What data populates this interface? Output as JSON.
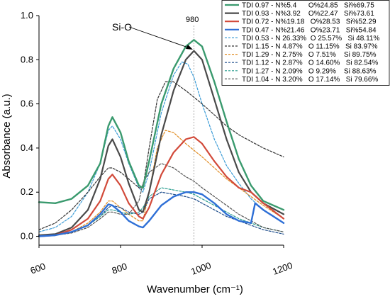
{
  "chart_data": {
    "type": "line",
    "title": "",
    "xlabel": "Wavenumber (cm⁻¹)",
    "ylabel": "Absorbance (a.u.)",
    "xlim": [
      600,
      1200
    ],
    "ylim": [
      -0.04,
      1.0
    ],
    "x_ticks": [
      600,
      800,
      1000,
      1200
    ],
    "x_tick_labels": [
      "600",
      "800",
      "1000",
      "1200"
    ],
    "y_ticks": [
      0.0,
      0.2,
      0.4,
      0.6,
      0.8,
      1.0
    ],
    "y_tick_labels": [
      "0.0",
      "0.2",
      "0.4",
      "0.6",
      "0.8",
      "1.0"
    ],
    "grid": false,
    "legend_position": "top-right",
    "annotations": [
      {
        "text": "Si-O",
        "x": 915,
        "y": 0.94
      },
      {
        "text": "980",
        "x": 980,
        "y": 1.0
      }
    ],
    "reference_line": {
      "x": 980,
      "style": "dotted"
    },
    "series": [
      {
        "name": "TDI 0.97 - N%5.4      O%24.85   Si%69.75",
        "color": "#3a9a6e",
        "style": "solid",
        "width": 2.4,
        "x": [
          600,
          640,
          680,
          720,
          750,
          770,
          780,
          800,
          820,
          845,
          855,
          870,
          900,
          930,
          960,
          980,
          1000,
          1030,
          1060,
          1090,
          1120,
          1150,
          1200
        ],
        "y": [
          0.155,
          0.15,
          0.17,
          0.23,
          0.33,
          0.5,
          0.54,
          0.47,
          0.34,
          0.23,
          0.22,
          0.34,
          0.6,
          0.76,
          0.86,
          0.89,
          0.86,
          0.7,
          0.52,
          0.35,
          0.23,
          0.16,
          0.12
        ]
      },
      {
        "name": "TDI 0.93 - N%3.92    O%22.47   Si%73.61",
        "color": "#4a4a4a",
        "style": "solid",
        "width": 2.2,
        "x": [
          600,
          640,
          680,
          720,
          750,
          770,
          780,
          800,
          820,
          845,
          855,
          870,
          900,
          930,
          960,
          980,
          1000,
          1030,
          1060,
          1090,
          1120,
          1150,
          1200
        ],
        "y": [
          0.005,
          0.01,
          0.04,
          0.12,
          0.26,
          0.41,
          0.44,
          0.36,
          0.24,
          0.12,
          0.11,
          0.2,
          0.46,
          0.66,
          0.8,
          0.84,
          0.8,
          0.62,
          0.44,
          0.29,
          0.2,
          0.15,
          0.1
        ]
      },
      {
        "name": "TDI 0.72 - N%19.18   O%28.53   Si%52.29",
        "color": "#d24a3a",
        "style": "solid",
        "width": 2.2,
        "x": [
          600,
          640,
          680,
          720,
          750,
          770,
          780,
          800,
          820,
          845,
          855,
          870,
          900,
          930,
          960,
          980,
          1000,
          1030,
          1060,
          1090,
          1120,
          1150,
          1200
        ],
        "y": [
          0.0,
          0.005,
          0.03,
          0.08,
          0.16,
          0.26,
          0.28,
          0.23,
          0.15,
          0.09,
          0.08,
          0.13,
          0.28,
          0.38,
          0.44,
          0.45,
          0.42,
          0.34,
          0.27,
          0.22,
          0.2,
          0.15,
          0.08
        ]
      },
      {
        "name": "TDI 0.47 - N%21.46   O%23.71   Si%54.84",
        "color": "#2e6fd6",
        "style": "solid",
        "width": 2.4,
        "x": [
          600,
          640,
          680,
          720,
          750,
          770,
          780,
          800,
          820,
          845,
          855,
          870,
          900,
          930,
          960,
          980,
          1000,
          1030,
          1060,
          1090,
          1120,
          1130,
          1150,
          1200
        ],
        "y": [
          0.0,
          0.005,
          0.02,
          0.05,
          0.1,
          0.145,
          0.14,
          0.11,
          0.07,
          0.045,
          0.04,
          0.07,
          0.14,
          0.18,
          0.2,
          0.2,
          0.19,
          0.15,
          0.1,
          0.07,
          0.06,
          0.15,
          0.12,
          0.06
        ]
      },
      {
        "name": "TDI 0.53 - N 26.33%  O 25.57%   Si 48.11%",
        "color": "#3a9bd6",
        "style": "dashed",
        "width": 1.2,
        "x": [
          600,
          640,
          680,
          720,
          750,
          770,
          780,
          800,
          820,
          845,
          855,
          870,
          900,
          930,
          950,
          965,
          980,
          1000,
          1030,
          1060,
          1090,
          1120,
          1150,
          1200
        ],
        "y": [
          0.02,
          0.04,
          0.09,
          0.2,
          0.33,
          0.48,
          0.5,
          0.44,
          0.33,
          0.22,
          0.2,
          0.29,
          0.56,
          0.73,
          0.79,
          0.78,
          0.72,
          0.6,
          0.44,
          0.32,
          0.24,
          0.17,
          0.12,
          0.06
        ]
      },
      {
        "name": "TDI 1.15 - N 4.87%   O 11.15%   Si 83.97%",
        "color": "#333333",
        "style": "dashed",
        "width": 1.2,
        "x": [
          600,
          640,
          680,
          720,
          750,
          770,
          780,
          800,
          820,
          845,
          855,
          870,
          890,
          910,
          930,
          960,
          1000,
          1030,
          1060,
          1090,
          1120,
          1150,
          1200
        ],
        "y": [
          0.03,
          0.06,
          0.12,
          0.2,
          0.27,
          0.31,
          0.31,
          0.29,
          0.26,
          0.22,
          0.22,
          0.4,
          0.62,
          0.7,
          0.7,
          0.66,
          0.6,
          0.55,
          0.5,
          0.46,
          0.43,
          0.4,
          0.36
        ]
      },
      {
        "name": "TDI 1.29 - N 2.75%   O 7.51%    Si 89.75%",
        "color": "#e08a1e",
        "style": "dashed",
        "width": 1.2,
        "x": [
          600,
          640,
          680,
          720,
          750,
          770,
          780,
          800,
          820,
          845,
          855,
          870,
          890,
          910,
          930,
          960,
          1000,
          1030,
          1060,
          1090,
          1120,
          1150,
          1200
        ],
        "y": [
          0.0,
          0.005,
          0.02,
          0.06,
          0.11,
          0.16,
          0.16,
          0.13,
          0.1,
          0.07,
          0.07,
          0.2,
          0.4,
          0.48,
          0.47,
          0.42,
          0.36,
          0.31,
          0.26,
          0.22,
          0.18,
          0.14,
          0.08
        ]
      },
      {
        "name": "TDI 1.12 - N 2.87%   O 14.60%   Si 82.54%",
        "color": "#1f4e8c",
        "style": "dashed",
        "width": 1.2,
        "x": [
          600,
          640,
          680,
          720,
          750,
          770,
          780,
          800,
          820,
          845,
          855,
          870,
          900,
          930,
          960,
          980,
          1000,
          1030,
          1060,
          1090,
          1120,
          1150,
          1200
        ],
        "y": [
          0.0,
          0.005,
          0.02,
          0.05,
          0.09,
          0.13,
          0.14,
          0.13,
          0.11,
          0.1,
          0.11,
          0.17,
          0.2,
          0.19,
          0.18,
          0.17,
          0.15,
          0.12,
          0.09,
          0.07,
          0.05,
          0.03,
          0.01
        ]
      },
      {
        "name": "TDI 1.27 - N 2.09%   O 9.29%    Si 88.63%",
        "color": "#2a9d8f",
        "style": "dashed",
        "width": 1.2,
        "x": [
          600,
          640,
          680,
          720,
          750,
          770,
          780,
          800,
          820,
          845,
          855,
          870,
          900,
          930,
          960,
          980,
          1000,
          1030,
          1060,
          1090,
          1120,
          1150,
          1200
        ],
        "y": [
          0.0,
          0.005,
          0.02,
          0.05,
          0.09,
          0.12,
          0.12,
          0.11,
          0.1,
          0.11,
          0.13,
          0.18,
          0.22,
          0.21,
          0.2,
          0.19,
          0.17,
          0.14,
          0.11,
          0.08,
          0.06,
          0.04,
          0.02
        ]
      },
      {
        "name": "TDI 1.04 - N 3.20%   O 17.14%   Si 79.66%",
        "color": "#555555",
        "style": "dashed",
        "width": 1.2,
        "x": [
          600,
          640,
          680,
          720,
          750,
          770,
          780,
          800,
          820,
          845,
          855,
          870,
          900,
          930,
          960,
          980,
          1000,
          1030,
          1060,
          1090,
          1120,
          1150,
          1200
        ],
        "y": [
          0.0,
          0.005,
          0.015,
          0.04,
          0.08,
          0.11,
          0.11,
          0.1,
          0.1,
          0.16,
          0.24,
          0.29,
          0.33,
          0.31,
          0.27,
          0.25,
          0.22,
          0.18,
          0.14,
          0.1,
          0.07,
          0.04,
          0.02
        ]
      }
    ]
  }
}
